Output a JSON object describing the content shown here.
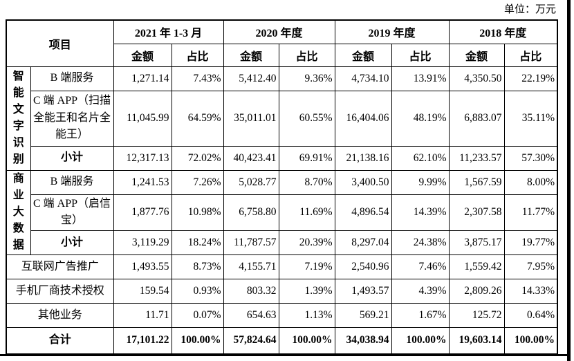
{
  "unit_label": "单位：万元",
  "table": {
    "item_header": "项目",
    "sub_headers": {
      "amount": "金额",
      "ratio": "占比"
    },
    "periods": [
      "2021 年 1-3 月",
      "2020 年度",
      "2019 年度",
      "2018 年度"
    ],
    "rows": [
      {
        "group": {
          "label": "智能文字识别",
          "span": 3
        },
        "label": "B 端服务",
        "values": [
          "1,271.14",
          "7.43%",
          "5,412.40",
          "9.36%",
          "4,734.10",
          "13.91%",
          "4,350.50",
          "22.19%"
        ]
      },
      {
        "label": "C 端 APP（扫描全能王和名片全能王）",
        "values": [
          "11,045.99",
          "64.59%",
          "35,011.01",
          "60.55%",
          "16,404.06",
          "48.19%",
          "6,883.07",
          "35.11%"
        ]
      },
      {
        "label": "小计",
        "bold": true,
        "values": [
          "12,317.13",
          "72.02%",
          "40,423.41",
          "69.91%",
          "21,138.16",
          "62.10%",
          "11,233.57",
          "57.30%"
        ]
      },
      {
        "group": {
          "label": "商业大数据",
          "span": 3
        },
        "label": "B 端服务",
        "values": [
          "1,241.53",
          "7.26%",
          "5,028.77",
          "8.70%",
          "3,400.50",
          "9.99%",
          "1,567.59",
          "8.00%"
        ]
      },
      {
        "label": "C 端 APP（启信宝）",
        "values": [
          "1,877.76",
          "10.98%",
          "6,758.80",
          "11.69%",
          "4,896.54",
          "14.39%",
          "2,307.58",
          "11.77%"
        ]
      },
      {
        "label": "小计",
        "bold": true,
        "values": [
          "3,119.29",
          "18.24%",
          "11,787.57",
          "20.39%",
          "8,297.04",
          "24.38%",
          "3,875.17",
          "19.77%"
        ]
      },
      {
        "label": "互联网广告推广",
        "wide": true,
        "values": [
          "1,493.55",
          "8.73%",
          "4,155.71",
          "7.19%",
          "2,540.96",
          "7.46%",
          "1,559.42",
          "7.95%"
        ]
      },
      {
        "label": "手机厂商技术授权",
        "wide": true,
        "values": [
          "159.54",
          "0.93%",
          "803.32",
          "1.39%",
          "1,493.57",
          "4.39%",
          "2,809.26",
          "14.33%"
        ]
      },
      {
        "label": "其他业务",
        "wide": true,
        "values": [
          "11.71",
          "0.07%",
          "654.63",
          "1.13%",
          "569.21",
          "1.67%",
          "125.72",
          "0.64%"
        ]
      },
      {
        "label": "合计",
        "wide": true,
        "bold": true,
        "bold_values": true,
        "values": [
          "17,101.22",
          "100.00%",
          "57,824.64",
          "100.00%",
          "34,038.94",
          "100.00%",
          "19,603.14",
          "100.00%"
        ]
      }
    ]
  }
}
